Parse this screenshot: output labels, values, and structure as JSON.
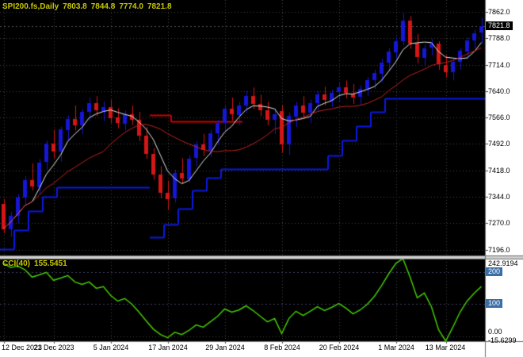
{
  "title": {
    "symbol": "SPI200.fs,Daily",
    "open": "7803.8",
    "high": "7844.8",
    "low": "7774.0",
    "close": "7821.8"
  },
  "indicator_title": {
    "name": "CCI(40)",
    "value": "155.5451"
  },
  "price_axis": {
    "labels": [
      "7862.0",
      "7788.0",
      "7714.0",
      "7640.0",
      "7566.0",
      "7492.0",
      "7418.0",
      "7344.0",
      "7270.0",
      "7196.0"
    ],
    "current_tag": "7821.8"
  },
  "time_axis": {
    "labels": [
      "12 Dec 2023",
      "21 Dec 2023",
      "5 Jan 2024",
      "17 Jan 2024",
      "29 Jan 2024",
      "8 Feb 2024",
      "20 Feb 2024",
      "1 Mar 2024",
      "13 Mar 2024"
    ]
  },
  "cci_axis": {
    "max_label": "242.9194",
    "level200": "200",
    "level100": "100",
    "zero_label": "0.00",
    "min_label": "-15.6299"
  },
  "colors": {
    "background": "#000000",
    "axis_bg": "#ffffff",
    "grid": "#424242",
    "bull": "#1616d6",
    "bear": "#d41616",
    "ma_fast": "#e6e6e6",
    "ma_slow": "#c22222",
    "support": "#0b18e0",
    "resistance": "#cc0000",
    "cci_line": "#44cc00",
    "tag_blue": "#3a6ea5",
    "title_text": "#c8c800"
  },
  "chart_data": {
    "type": "candlestick",
    "symbol": "SPI200.fs",
    "timeframe": "Daily",
    "title": "SPI200.fs,Daily 7803.8 7844.8 7774.0 7821.8",
    "price_axis_ticks": [
      7862,
      7788,
      7714,
      7640,
      7566,
      7492,
      7418,
      7344,
      7270,
      7196
    ],
    "visible_price_range": [
      7196,
      7862
    ],
    "date_label_bar_indices": [
      0,
      7,
      15,
      23,
      31,
      39,
      47,
      55,
      62
    ],
    "bars": [
      [
        7325,
        7338,
        7242,
        7255
      ],
      [
        7255,
        7302,
        7232,
        7292
      ],
      [
        7292,
        7352,
        7270,
        7342
      ],
      [
        7342,
        7402,
        7322,
        7390
      ],
      [
        7390,
        7438,
        7362,
        7372
      ],
      [
        7372,
        7450,
        7352,
        7440
      ],
      [
        7440,
        7502,
        7420,
        7492
      ],
      [
        7492,
        7532,
        7452,
        7470
      ],
      [
        7470,
        7540,
        7442,
        7532
      ],
      [
        7532,
        7572,
        7502,
        7562
      ],
      [
        7562,
        7600,
        7530,
        7545
      ],
      [
        7545,
        7590,
        7520,
        7582
      ],
      [
        7582,
        7622,
        7556,
        7606
      ],
      [
        7606,
        7626,
        7570,
        7586
      ],
      [
        7586,
        7612,
        7556,
        7596
      ],
      [
        7596,
        7616,
        7550,
        7566
      ],
      [
        7566,
        7592,
        7536,
        7550
      ],
      [
        7550,
        7586,
        7530,
        7576
      ],
      [
        7576,
        7600,
        7546,
        7560
      ],
      [
        7560,
        7582,
        7500,
        7516
      ],
      [
        7516,
        7540,
        7450,
        7464
      ],
      [
        7464,
        7480,
        7392,
        7406
      ],
      [
        7406,
        7430,
        7340,
        7356
      ],
      [
        7356,
        7390,
        7308,
        7338
      ],
      [
        7338,
        7420,
        7328,
        7410
      ],
      [
        7410,
        7452,
        7380,
        7394
      ],
      [
        7394,
        7460,
        7384,
        7452
      ],
      [
        7452,
        7500,
        7430,
        7490
      ],
      [
        7490,
        7520,
        7458,
        7474
      ],
      [
        7474,
        7532,
        7456,
        7522
      ],
      [
        7522,
        7560,
        7490,
        7550
      ],
      [
        7550,
        7600,
        7530,
        7590
      ],
      [
        7590,
        7622,
        7558,
        7574
      ],
      [
        7574,
        7610,
        7544,
        7600
      ],
      [
        7600,
        7640,
        7580,
        7626
      ],
      [
        7626,
        7650,
        7590,
        7604
      ],
      [
        7604,
        7630,
        7570,
        7586
      ],
      [
        7586,
        7610,
        7544,
        7560
      ],
      [
        7560,
        7592,
        7520,
        7576
      ],
      [
        7584,
        7600,
        7468,
        7490
      ],
      [
        7490,
        7580,
        7462,
        7570
      ],
      [
        7570,
        7610,
        7540,
        7600
      ],
      [
        7600,
        7626,
        7564,
        7580
      ],
      [
        7580,
        7616,
        7550,
        7606
      ],
      [
        7606,
        7640,
        7586,
        7630
      ],
      [
        7630,
        7652,
        7600,
        7614
      ],
      [
        7614,
        7644,
        7596,
        7636
      ],
      [
        7636,
        7666,
        7610,
        7650
      ],
      [
        7650,
        7670,
        7620,
        7634
      ],
      [
        7634,
        7660,
        7604,
        7624
      ],
      [
        7624,
        7656,
        7600,
        7646
      ],
      [
        7646,
        7680,
        7626,
        7670
      ],
      [
        7670,
        7700,
        7646,
        7690
      ],
      [
        7690,
        7730,
        7666,
        7720
      ],
      [
        7720,
        7760,
        7700,
        7750
      ],
      [
        7750,
        7792,
        7730,
        7780
      ],
      [
        7780,
        7858,
        7768,
        7838
      ],
      [
        7838,
        7850,
        7758,
        7774
      ],
      [
        7774,
        7800,
        7718,
        7734
      ],
      [
        7734,
        7770,
        7712,
        7760
      ],
      [
        7760,
        7786,
        7740,
        7772
      ],
      [
        7772,
        7780,
        7700,
        7714
      ],
      [
        7714,
        7740,
        7678,
        7694
      ],
      [
        7694,
        7730,
        7670,
        7722
      ],
      [
        7722,
        7760,
        7700,
        7752
      ],
      [
        7752,
        7790,
        7730,
        7782
      ],
      [
        7782,
        7812,
        7760,
        7802
      ],
      [
        7803.8,
        7844.8,
        7774.0,
        7821.8
      ]
    ],
    "overlays": {
      "ma_fast": {
        "type": "sma",
        "period": 5
      },
      "ma_slow": {
        "type": "sma",
        "period": 15
      },
      "support_steps": {
        "segments": [
          [
            0,
            1,
            7198
          ],
          [
            2,
            3,
            7252
          ],
          [
            4,
            5,
            7305
          ],
          [
            6,
            7,
            7345
          ],
          [
            8,
            20,
            7372
          ],
          [
            21,
            22,
            7232
          ],
          [
            23,
            24,
            7266
          ],
          [
            25,
            26,
            7312
          ],
          [
            27,
            28,
            7362
          ],
          [
            29,
            30,
            7398
          ],
          [
            31,
            45,
            7422
          ],
          [
            46,
            47,
            7460
          ],
          [
            48,
            49,
            7502
          ],
          [
            50,
            51,
            7542
          ],
          [
            52,
            53,
            7582
          ],
          [
            54,
            67,
            7620
          ]
        ]
      },
      "resistance_steps": {
        "segments": [
          [
            21,
            23,
            7574
          ],
          [
            24,
            33,
            7556
          ]
        ]
      }
    },
    "cci": {
      "name": "CCI",
      "period": 40,
      "current_value": 155.5451,
      "range": [
        -15.6299,
        242.9194
      ],
      "levels": [
        100,
        200
      ],
      "values": [
        228,
        215,
        220,
        208,
        185,
        192,
        200,
        175,
        182,
        190,
        170,
        162,
        170,
        150,
        155,
        128,
        110,
        118,
        100,
        75,
        48,
        22,
        5,
        -5,
        12,
        5,
        18,
        35,
        28,
        45,
        62,
        85,
        75,
        82,
        95,
        80,
        62,
        45,
        55,
        8,
        55,
        78,
        65,
        78,
        92,
        80,
        90,
        102,
        88,
        70,
        82,
        100,
        125,
        158,
        195,
        228,
        242.9194,
        185,
        120,
        135,
        92,
        20,
        -15.6299,
        28,
        75,
        110,
        135,
        155.5451
      ]
    }
  }
}
